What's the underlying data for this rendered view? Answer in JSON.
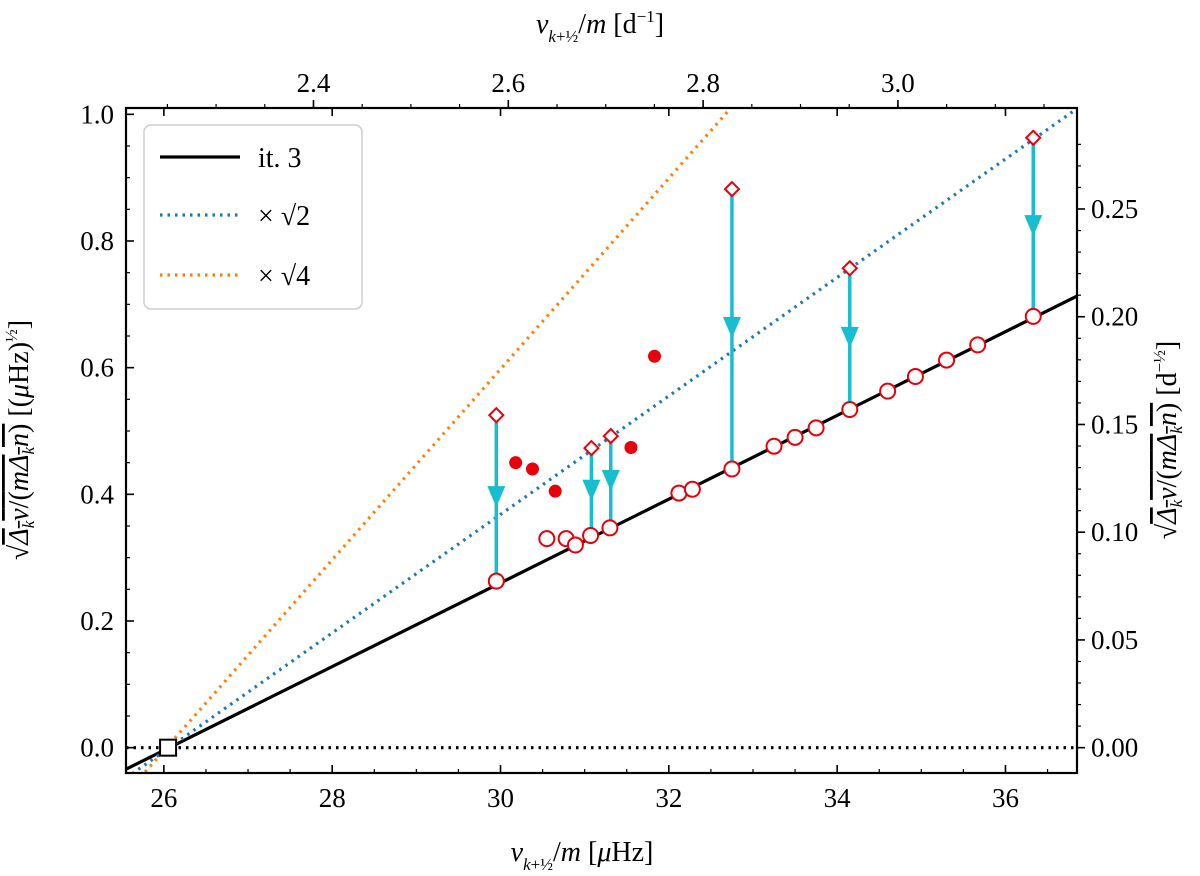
{
  "chart_data": {
    "type": "scatter",
    "title": "",
    "xlabel": "ν_{k+½}/m [μHz]",
    "ylabel": "√(Δ_kν/(mΔ_kn)) [(μHz)^½]",
    "top_xlabel": "ν_{k+½}/m [d⁻¹]",
    "right_ylabel": "√(Δ_kν/(mΔ_kn)) [d^-½]",
    "xlim": [
      25.55,
      36.85
    ],
    "ylim": [
      -0.04,
      1.01
    ],
    "x_ticks": [
      26,
      28,
      30,
      32,
      34,
      36
    ],
    "x_tick_labels": [
      "26",
      "28",
      "30",
      "32",
      "34",
      "36"
    ],
    "y_ticks": [
      0.0,
      0.2,
      0.4,
      0.6,
      0.8,
      1.0
    ],
    "y_tick_labels": [
      "0.0",
      "0.2",
      "0.4",
      "0.6",
      "0.8",
      "1.0"
    ],
    "top_x_ticks": [
      2.4,
      2.6,
      2.8,
      3.0
    ],
    "top_x_tick_labels": [
      "2.4",
      "2.6",
      "2.8",
      "3.0"
    ],
    "right_y_ticks": [
      0.0,
      0.05,
      0.1,
      0.15,
      0.2,
      0.25
    ],
    "right_y_tick_labels": [
      "0.00",
      "0.05",
      "0.10",
      "0.15",
      "0.20",
      "0.25"
    ],
    "legend": {
      "position": "top-left",
      "entries": [
        {
          "label": "it. 3",
          "style": "solid",
          "color": "#000000"
        },
        {
          "label": "× √2",
          "style": "dotted",
          "color": "#1f77b4"
        },
        {
          "label": "× √4",
          "style": "dotted",
          "color": "#ff7f0e"
        }
      ]
    },
    "lines": [
      {
        "name": "it. 3",
        "color": "#000000",
        "style": "solid",
        "x": [
          25.55,
          36.85
        ],
        "y": [
          -0.034,
          0.713
        ]
      },
      {
        "name": "× √2",
        "color": "#1f77b4",
        "style": "dotted",
        "x": [
          25.55,
          36.85
        ],
        "y": [
          -0.048,
          1.009
        ]
      },
      {
        "name": "× √4",
        "color": "#ff7f0e",
        "style": "dotted",
        "x": [
          25.6,
          32.73
        ],
        "y": [
          -0.065,
          1.009
        ]
      },
      {
        "name": "zero",
        "color": "#000000",
        "style": "dotted",
        "x": [
          25.55,
          36.85
        ],
        "y": [
          0.0,
          0.0
        ]
      }
    ],
    "series": [
      {
        "name": "open circles",
        "color": "#e8000b",
        "x": [
          29.95,
          30.55,
          30.78,
          30.89,
          31.07,
          31.3,
          32.12,
          32.28,
          32.75,
          33.25,
          33.5,
          33.75,
          34.15,
          34.6,
          34.93,
          35.3,
          35.67,
          36.33
        ],
        "y": [
          0.263,
          0.33,
          0.33,
          0.32,
          0.335,
          0.347,
          0.402,
          0.408,
          0.44,
          0.476,
          0.49,
          0.505,
          0.534,
          0.563,
          0.586,
          0.612,
          0.636,
          0.681
        ]
      },
      {
        "name": "filled circles",
        "color": "#e8000b",
        "x": [
          30.18,
          30.38,
          30.65,
          31.55,
          31.83
        ],
        "y": [
          0.45,
          0.44,
          0.405,
          0.474,
          0.618
        ]
      },
      {
        "name": "open diamonds",
        "color": "#e8000b",
        "x": [
          29.95,
          31.08,
          31.31,
          32.75,
          34.15,
          36.33
        ],
        "y": [
          0.525,
          0.473,
          0.492,
          0.882,
          0.757,
          0.963
        ]
      }
    ],
    "arrows": [
      {
        "x": 29.95,
        "y_from": 0.525,
        "y_to": 0.263
      },
      {
        "x": 31.08,
        "y_from": 0.473,
        "y_to": 0.335
      },
      {
        "x": 31.31,
        "y_from": 0.492,
        "y_to": 0.347
      },
      {
        "x": 32.75,
        "y_from": 0.882,
        "y_to": 0.44
      },
      {
        "x": 34.15,
        "y_from": 0.757,
        "y_to": 0.534
      },
      {
        "x": 36.33,
        "y_from": 0.963,
        "y_to": 0.681
      }
    ],
    "origin_marker": {
      "x": 26.05,
      "y": 0.0
    }
  }
}
